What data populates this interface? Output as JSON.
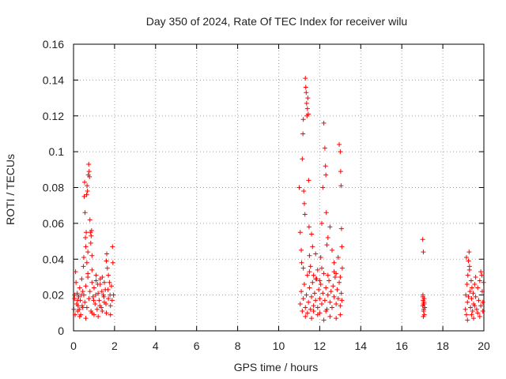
{
  "chart_data": {
    "type": "scatter",
    "title": "Day 350 of 2024, Rate Of TEC Index for receiver wilu",
    "xlabel": "GPS time / hours",
    "ylabel": "ROTI / TECUs",
    "xlim": [
      0,
      20
    ],
    "ylim": [
      0,
      0.16
    ],
    "x_ticks": [
      "0",
      "2",
      "4",
      "6",
      "8",
      "10",
      "12",
      "14",
      "16",
      "18",
      "20"
    ],
    "y_ticks": [
      "0",
      "0.02",
      "0.04",
      "0.06",
      "0.08",
      "0.1",
      "0.12",
      "0.14",
      "0.16"
    ],
    "grid": true,
    "marker": "plus",
    "color": "#ff0000",
    "series": [
      {
        "name": "ROTI",
        "points": [
          [
            0.02,
            0.012
          ],
          [
            0.05,
            0.018
          ],
          [
            0.08,
            0.009
          ],
          [
            0.1,
            0.033
          ],
          [
            0.12,
            0.027
          ],
          [
            0.15,
            0.015
          ],
          [
            0.18,
            0.021
          ],
          [
            0.2,
            0.011
          ],
          [
            0.22,
            0.014
          ],
          [
            0.25,
            0.019
          ],
          [
            0.28,
            0.012
          ],
          [
            0.3,
            0.024
          ],
          [
            0.33,
            0.017
          ],
          [
            0.35,
            0.009
          ],
          [
            0.38,
            0.02
          ],
          [
            0.4,
            0.029
          ],
          [
            0.42,
            0.014
          ],
          [
            0.45,
            0.022
          ],
          [
            0.48,
            0.036
          ],
          [
            0.5,
            0.041
          ],
          [
            0.52,
            0.075
          ],
          [
            0.54,
            0.083
          ],
          [
            0.56,
            0.066
          ],
          [
            0.58,
            0.052
          ],
          [
            0.6,
            0.047
          ],
          [
            0.62,
            0.055
          ],
          [
            0.64,
            0.076
          ],
          [
            0.66,
            0.081
          ],
          [
            0.68,
            0.078
          ],
          [
            0.7,
            0.044
          ],
          [
            0.72,
            0.087
          ],
          [
            0.74,
            0.093
          ],
          [
            0.76,
            0.089
          ],
          [
            0.78,
            0.086
          ],
          [
            0.8,
            0.062
          ],
          [
            0.82,
            0.055
          ],
          [
            0.84,
            0.049
          ],
          [
            0.86,
            0.053
          ],
          [
            0.88,
            0.056
          ],
          [
            0.9,
            0.042
          ],
          [
            0.5,
            0.02
          ],
          [
            0.55,
            0.016
          ],
          [
            0.6,
            0.025
          ],
          [
            0.65,
            0.013
          ],
          [
            0.7,
            0.03
          ],
          [
            0.75,
            0.018
          ],
          [
            0.8,
            0.022
          ],
          [
            0.85,
            0.011
          ],
          [
            0.9,
            0.027
          ],
          [
            0.95,
            0.019
          ],
          [
            1.0,
            0.024
          ],
          [
            1.05,
            0.015
          ],
          [
            1.1,
            0.028
          ],
          [
            1.15,
            0.012
          ],
          [
            1.2,
            0.021
          ],
          [
            1.25,
            0.017
          ],
          [
            1.3,
            0.026
          ],
          [
            1.35,
            0.013
          ],
          [
            1.4,
            0.03
          ],
          [
            1.45,
            0.02
          ],
          [
            1.5,
            0.016
          ],
          [
            1.55,
            0.023
          ],
          [
            1.6,
            0.039
          ],
          [
            1.62,
            0.043
          ],
          [
            1.65,
            0.035
          ],
          [
            1.7,
            0.018
          ],
          [
            1.75,
            0.027
          ],
          [
            1.8,
            0.014
          ],
          [
            1.85,
            0.025
          ],
          [
            1.9,
            0.047
          ],
          [
            1.92,
            0.038
          ],
          [
            1.95,
            0.02
          ],
          [
            1.0,
            0.009
          ],
          [
            1.2,
            0.008
          ],
          [
            1.4,
            0.011
          ],
          [
            1.6,
            0.01
          ],
          [
            1.8,
            0.009
          ],
          [
            0.3,
            0.008
          ],
          [
            0.6,
            0.007
          ],
          [
            0.9,
            0.01
          ],
          [
            0.7,
            0.032
          ],
          [
            0.9,
            0.034
          ],
          [
            1.1,
            0.031
          ],
          [
            1.3,
            0.029
          ],
          [
            1.5,
            0.027
          ],
          [
            1.7,
            0.031
          ],
          [
            0.05,
            0.02
          ],
          [
            0.2,
            0.017
          ],
          [
            0.45,
            0.013
          ],
          [
            0.65,
            0.038
          ],
          [
            0.98,
            0.017
          ],
          [
            1.08,
            0.02
          ],
          [
            1.18,
            0.026
          ],
          [
            1.28,
            0.014
          ],
          [
            1.38,
            0.022
          ],
          [
            1.48,
            0.019
          ],
          [
            1.58,
            0.015
          ],
          [
            1.68,
            0.023
          ],
          [
            1.78,
            0.02
          ],
          [
            1.88,
            0.017
          ],
          [
            11.0,
            0.08
          ],
          [
            11.05,
            0.055
          ],
          [
            11.1,
            0.045
          ],
          [
            11.12,
            0.038
          ],
          [
            11.15,
            0.096
          ],
          [
            11.18,
            0.11
          ],
          [
            11.2,
            0.118
          ],
          [
            11.22,
            0.078
          ],
          [
            11.25,
            0.071
          ],
          [
            11.28,
            0.065
          ],
          [
            11.3,
            0.141
          ],
          [
            11.32,
            0.136
          ],
          [
            11.34,
            0.133
          ],
          [
            11.36,
            0.127
          ],
          [
            11.38,
            0.12
          ],
          [
            11.4,
            0.124
          ],
          [
            11.42,
            0.13
          ],
          [
            11.44,
            0.121
          ],
          [
            11.46,
            0.084
          ],
          [
            11.48,
            0.058
          ],
          [
            11.5,
            0.042
          ],
          [
            11.55,
            0.036
          ],
          [
            11.6,
            0.054
          ],
          [
            11.65,
            0.047
          ],
          [
            11.7,
            0.031
          ],
          [
            11.8,
            0.043
          ],
          [
            11.9,
            0.034
          ],
          [
            12.0,
            0.028
          ],
          [
            12.05,
            0.041
          ],
          [
            12.1,
            0.06
          ],
          [
            12.15,
            0.08
          ],
          [
            12.2,
            0.116
          ],
          [
            12.25,
            0.102
          ],
          [
            12.28,
            0.092
          ],
          [
            12.3,
            0.087
          ],
          [
            12.32,
            0.066
          ],
          [
            12.35,
            0.048
          ],
          [
            12.4,
            0.052
          ],
          [
            12.5,
            0.058
          ],
          [
            12.6,
            0.045
          ],
          [
            12.7,
            0.038
          ],
          [
            12.8,
            0.032
          ],
          [
            12.9,
            0.041
          ],
          [
            12.95,
            0.104
          ],
          [
            13.0,
            0.1
          ],
          [
            13.02,
            0.089
          ],
          [
            13.04,
            0.081
          ],
          [
            13.06,
            0.057
          ],
          [
            13.08,
            0.047
          ],
          [
            13.1,
            0.035
          ],
          [
            11.05,
            0.015
          ],
          [
            11.1,
            0.022
          ],
          [
            11.15,
            0.011
          ],
          [
            11.2,
            0.018
          ],
          [
            11.25,
            0.026
          ],
          [
            11.3,
            0.013
          ],
          [
            11.35,
            0.02
          ],
          [
            11.4,
            0.031
          ],
          [
            11.45,
            0.016
          ],
          [
            11.5,
            0.024
          ],
          [
            11.55,
            0.012
          ],
          [
            11.6,
            0.019
          ],
          [
            11.65,
            0.027
          ],
          [
            11.7,
            0.014
          ],
          [
            11.75,
            0.021
          ],
          [
            11.8,
            0.017
          ],
          [
            11.85,
            0.029
          ],
          [
            11.9,
            0.013
          ],
          [
            11.95,
            0.023
          ],
          [
            12.0,
            0.018
          ],
          [
            12.05,
            0.026
          ],
          [
            12.1,
            0.015
          ],
          [
            12.15,
            0.021
          ],
          [
            12.2,
            0.032
          ],
          [
            12.25,
            0.017
          ],
          [
            12.3,
            0.024
          ],
          [
            12.35,
            0.012
          ],
          [
            12.4,
            0.02
          ],
          [
            12.45,
            0.028
          ],
          [
            12.5,
            0.016
          ],
          [
            12.55,
            0.022
          ],
          [
            12.6,
            0.013
          ],
          [
            12.65,
            0.025
          ],
          [
            12.7,
            0.019
          ],
          [
            12.75,
            0.03
          ],
          [
            12.8,
            0.015
          ],
          [
            12.85,
            0.023
          ],
          [
            12.9,
            0.018
          ],
          [
            12.95,
            0.027
          ],
          [
            13.0,
            0.014
          ],
          [
            13.05,
            0.021
          ],
          [
            13.08,
            0.017
          ],
          [
            11.3,
            0.008
          ],
          [
            11.6,
            0.007
          ],
          [
            11.9,
            0.009
          ],
          [
            12.2,
            0.006
          ],
          [
            12.5,
            0.008
          ],
          [
            12.8,
            0.007
          ],
          [
            13.0,
            0.009
          ],
          [
            11.2,
            0.035
          ],
          [
            11.5,
            0.033
          ],
          [
            11.8,
            0.029
          ],
          [
            12.1,
            0.035
          ],
          [
            12.4,
            0.031
          ],
          [
            12.7,
            0.033
          ],
          [
            13.0,
            0.03
          ],
          [
            11.4,
            0.01
          ],
          [
            11.7,
            0.011
          ],
          [
            12.0,
            0.01
          ],
          [
            12.3,
            0.011
          ],
          [
            17.02,
            0.051
          ],
          [
            17.05,
            0.044
          ],
          [
            17.03,
            0.02
          ],
          [
            17.05,
            0.015
          ],
          [
            17.07,
            0.012
          ],
          [
            17.09,
            0.018
          ],
          [
            17.1,
            0.009
          ],
          [
            17.02,
            0.014
          ],
          [
            17.04,
            0.017
          ],
          [
            17.06,
            0.011
          ],
          [
            17.08,
            0.016
          ],
          [
            17.12,
            0.013
          ],
          [
            17.05,
            0.008
          ],
          [
            17.03,
            0.019
          ],
          [
            17.09,
            0.015
          ],
          [
            19.1,
            0.012
          ],
          [
            19.12,
            0.02
          ],
          [
            19.15,
            0.009
          ],
          [
            19.18,
            0.026
          ],
          [
            19.2,
            0.016
          ],
          [
            19.22,
            0.031
          ],
          [
            19.25,
            0.039
          ],
          [
            19.28,
            0.044
          ],
          [
            19.3,
            0.034
          ],
          [
            19.32,
            0.022
          ],
          [
            19.35,
            0.013
          ],
          [
            19.38,
            0.028
          ],
          [
            19.4,
            0.018
          ],
          [
            19.42,
            0.024
          ],
          [
            19.45,
            0.011
          ],
          [
            19.48,
            0.021
          ],
          [
            19.5,
            0.015
          ],
          [
            19.55,
            0.026
          ],
          [
            19.6,
            0.019
          ],
          [
            19.65,
            0.012
          ],
          [
            19.7,
            0.024
          ],
          [
            19.75,
            0.017
          ],
          [
            19.8,
            0.028
          ],
          [
            19.85,
            0.014
          ],
          [
            19.9,
            0.031
          ],
          [
            19.92,
            0.022
          ],
          [
            19.95,
            0.016
          ],
          [
            19.98,
            0.027
          ],
          [
            19.2,
            0.006
          ],
          [
            19.5,
            0.007
          ],
          [
            19.8,
            0.008
          ],
          [
            19.3,
            0.036
          ],
          [
            19.6,
            0.03
          ],
          [
            19.85,
            0.033
          ],
          [
            19.15,
            0.041
          ],
          [
            19.4,
            0.009
          ],
          [
            19.7,
            0.01
          ],
          [
            19.95,
            0.011
          ],
          [
            19.25,
            0.019
          ],
          [
            19.55,
            0.014
          ]
        ]
      }
    ]
  }
}
